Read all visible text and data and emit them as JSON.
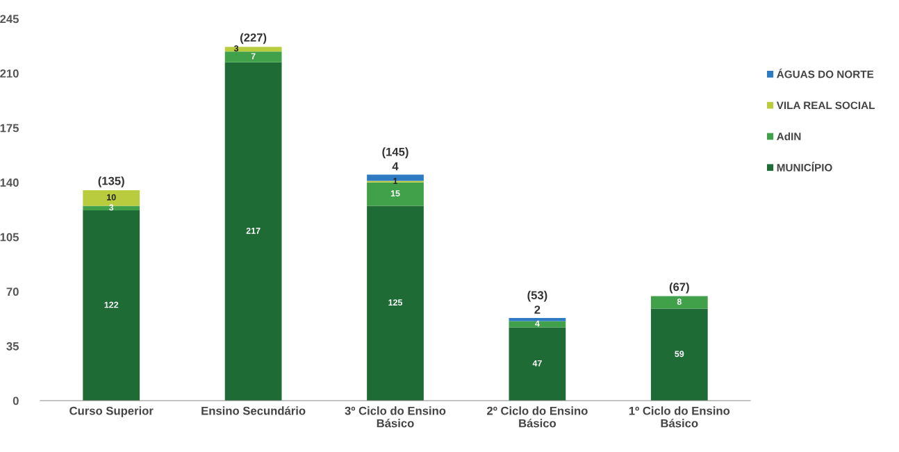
{
  "chart_data": {
    "type": "bar",
    "stacked": true,
    "categories": [
      "Curso Superior",
      "Ensino Secundário",
      "3º Ciclo do Ensino Básico",
      "2º Ciclo do Ensino Básico",
      "1º Ciclo do Ensino Básico"
    ],
    "series": [
      {
        "name": "MUNICÍPIO",
        "color": "#1e6b35",
        "values": [
          122,
          217,
          125,
          47,
          59
        ]
      },
      {
        "name": "AdIN",
        "color": "#41a04a",
        "values": [
          3,
          7,
          15,
          4,
          8
        ]
      },
      {
        "name": "VILA REAL SOCIAL",
        "color": "#b9cc3e",
        "values": [
          10,
          3,
          1,
          null,
          null
        ]
      },
      {
        "name": "ÁGUAS DO NORTE",
        "color": "#2e7bc4",
        "values": [
          null,
          null,
          4,
          2,
          null
        ]
      }
    ],
    "ylim": [
      0,
      245
    ],
    "yticks": [
      0,
      35,
      70,
      105,
      140,
      175,
      210,
      245
    ],
    "data_labels": true,
    "totals": [
      "(135)",
      "(227)",
      "(145)",
      "(53)",
      "(67)"
    ],
    "legend": "right"
  }
}
